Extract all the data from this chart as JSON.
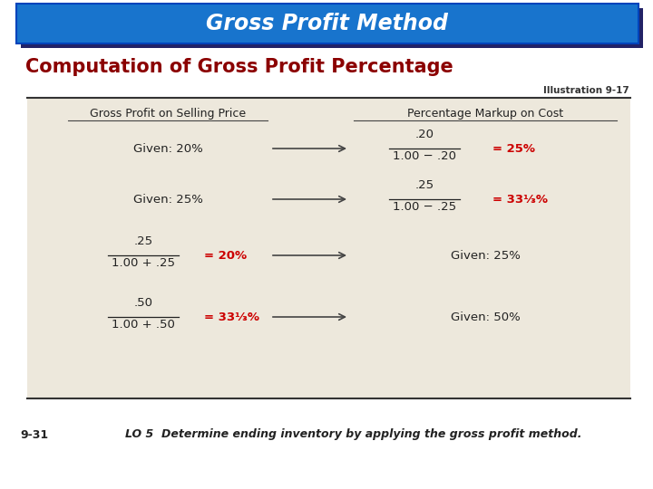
{
  "title": "Gross Profit Method",
  "subtitle": "Computation of Gross Profit Percentage",
  "illustration": "Illustration 9-17",
  "footer_left": "9-31",
  "footer_right": "LO 5  Determine ending inventory by applying the gross profit method.",
  "title_bg": "#1874CD",
  "title_fg": "#FFFFFF",
  "subtitle_fg": "#8B0000",
  "table_bg": "#EDE8DC",
  "table_border": "#333333",
  "left_header": "Gross Profit on Selling Price",
  "right_header": "Percentage Markup on Cost",
  "bg_color": "#FFFFFF",
  "red_color": "#CC0000",
  "black_color": "#222222"
}
